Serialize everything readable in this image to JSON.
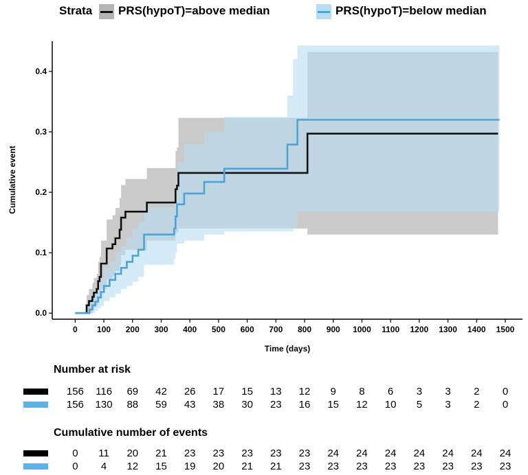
{
  "legend": {
    "title": "Strata",
    "items": [
      {
        "label": "PRS(hypoT)=above median",
        "line_color": "#111111",
        "fill_color": "#b4b4b4"
      },
      {
        "label": "PRS(hypoT)=below median",
        "line_color": "#4ba3d8",
        "fill_color": "#b7ddf2"
      }
    ]
  },
  "chart_data": {
    "type": "line",
    "subtype": "kaplan-meier cumulative event (step)",
    "xlabel": "Time (days)",
    "ylabel": "Cumulative event",
    "xlim": [
      -80,
      1560
    ],
    "ylim": [
      -0.01,
      0.45
    ],
    "x_ticks": [
      0,
      100,
      200,
      300,
      400,
      500,
      600,
      700,
      800,
      900,
      1000,
      1100,
      1200,
      1300,
      1400,
      1500
    ],
    "y_ticks": [
      0.0,
      0.1,
      0.2,
      0.3,
      0.4
    ],
    "y_tick_labels": [
      "0.0",
      "0.1",
      "0.2",
      "0.3",
      "0.4"
    ],
    "grid": false,
    "series": [
      {
        "name": "PRS(hypoT)=above median",
        "line_color": "#111111",
        "band_color": "#b4b4b4",
        "band_opacity": 0.7,
        "x": [
          0,
          40,
          48,
          60,
          65,
          75,
          80,
          85,
          90,
          110,
          130,
          140,
          155,
          160,
          175,
          180,
          250,
          350,
          355,
          360,
          810,
          1475
        ],
        "y": [
          0.0,
          0.013,
          0.02,
          0.027,
          0.034,
          0.04,
          0.053,
          0.06,
          0.082,
          0.107,
          0.114,
          0.124,
          0.138,
          0.158,
          0.168,
          0.168,
          0.183,
          0.205,
          0.211,
          0.232,
          0.297,
          0.297
        ],
        "lower": [
          0.0,
          0.0,
          0.0,
          0.005,
          0.01,
          0.013,
          0.02,
          0.024,
          0.04,
          0.056,
          0.062,
          0.07,
          0.08,
          0.096,
          0.105,
          0.105,
          0.12,
          0.132,
          0.134,
          0.14,
          0.13,
          0.13
        ],
        "upper": [
          0.0,
          0.03,
          0.04,
          0.05,
          0.058,
          0.065,
          0.085,
          0.093,
          0.12,
          0.155,
          0.162,
          0.174,
          0.19,
          0.212,
          0.222,
          0.222,
          0.24,
          0.268,
          0.274,
          0.323,
          0.432,
          0.432
        ]
      },
      {
        "name": "PRS(hypoT)=below median",
        "line_color": "#4ba3d8",
        "band_color": "#b7ddf2",
        "band_opacity": 0.6,
        "x": [
          0,
          50,
          60,
          70,
          80,
          90,
          100,
          120,
          140,
          160,
          180,
          200,
          220,
          240,
          345,
          350,
          355,
          380,
          450,
          520,
          740,
          760,
          775,
          1480
        ],
        "y": [
          0.0,
          0.006,
          0.013,
          0.019,
          0.026,
          0.035,
          0.045,
          0.055,
          0.065,
          0.075,
          0.085,
          0.095,
          0.105,
          0.13,
          0.14,
          0.16,
          0.18,
          0.198,
          0.217,
          0.239,
          0.279,
          0.279,
          0.32,
          0.32
        ],
        "lower": [
          0.0,
          0.0,
          0.0,
          0.004,
          0.008,
          0.012,
          0.02,
          0.026,
          0.032,
          0.04,
          0.045,
          0.052,
          0.06,
          0.08,
          0.09,
          0.1,
          0.115,
          0.12,
          0.13,
          0.135,
          0.135,
          0.14,
          0.168,
          0.168
        ],
        "upper": [
          0.0,
          0.015,
          0.028,
          0.036,
          0.045,
          0.06,
          0.075,
          0.085,
          0.1,
          0.11,
          0.125,
          0.14,
          0.15,
          0.175,
          0.185,
          0.22,
          0.25,
          0.28,
          0.3,
          0.325,
          0.36,
          0.42,
          0.443,
          0.443
        ]
      }
    ]
  },
  "risk_table": {
    "title": "Number at risk",
    "times": [
      0,
      100,
      200,
      300,
      400,
      500,
      600,
      700,
      800,
      900,
      1000,
      1100,
      1200,
      1300,
      1400,
      1500
    ],
    "rows": [
      {
        "color": "#000000",
        "values": [
          "156",
          "116",
          "69",
          "42",
          "26",
          "17",
          "15",
          "13",
          "12",
          "9",
          "8",
          "6",
          "3",
          "3",
          "2",
          "0"
        ]
      },
      {
        "color": "#5ab4e8",
        "values": [
          "156",
          "130",
          "88",
          "59",
          "43",
          "38",
          "30",
          "23",
          "16",
          "15",
          "12",
          "10",
          "5",
          "3",
          "2",
          "0"
        ]
      }
    ]
  },
  "events_table": {
    "title": "Cumulative number of events",
    "rows": [
      {
        "color": "#000000",
        "values": [
          "0",
          "11",
          "20",
          "21",
          "23",
          "23",
          "23",
          "23",
          "23",
          "24",
          "24",
          "24",
          "24",
          "24",
          "24",
          "24"
        ]
      },
      {
        "color": "#5ab4e8",
        "values": [
          "0",
          "4",
          "12",
          "15",
          "19",
          "20",
          "21",
          "21",
          "23",
          "23",
          "23",
          "23",
          "23",
          "23",
          "23",
          "23"
        ]
      }
    ]
  }
}
